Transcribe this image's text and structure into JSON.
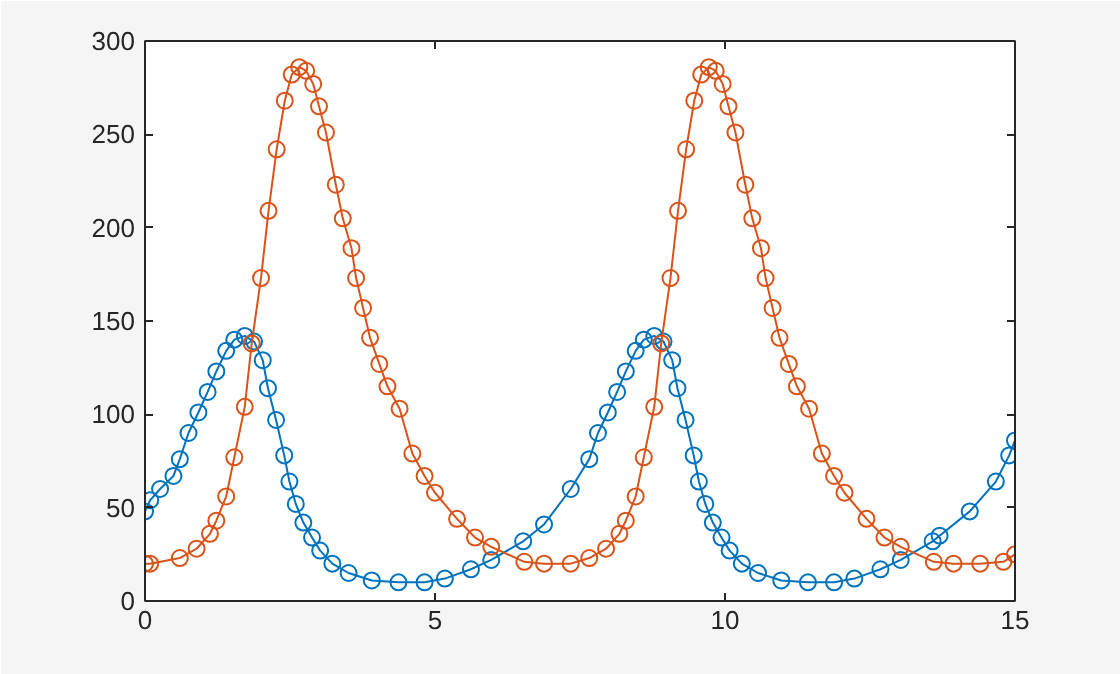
{
  "chart_data": {
    "type": "line",
    "marker": "circle",
    "line_style": "solid",
    "grid": false,
    "xlim": [
      0,
      15
    ],
    "ylim": [
      0,
      300
    ],
    "xticks": [
      0,
      5,
      10,
      15
    ],
    "yticks": [
      0,
      50,
      100,
      150,
      200,
      250,
      300
    ],
    "series": [
      {
        "color": "#0072bd",
        "x": [
          0,
          0.09,
          0.26,
          0.49,
          0.6,
          0.75,
          0.92,
          1.08,
          1.23,
          1.4,
          1.54,
          1.72,
          1.88,
          2.03,
          2.12,
          2.26,
          2.4,
          2.49,
          2.6,
          2.73,
          2.88,
          3.02,
          3.23,
          3.51,
          3.91,
          4.37,
          4.82,
          5.17,
          5.62,
          5.97,
          6.52,
          6.88,
          7.34,
          7.66,
          7.81,
          7.98,
          8.14,
          8.29,
          8.46,
          8.6,
          8.78,
          8.94,
          9.09,
          9.18,
          9.32,
          9.46,
          9.55,
          9.66,
          9.79,
          9.94,
          10.08,
          10.29,
          10.57,
          10.97,
          11.43,
          11.88,
          12.23,
          12.68,
          13.03,
          13.58,
          13.7,
          14.22,
          14.67,
          14.9,
          15
        ],
        "values": [
          48,
          54,
          60,
          67,
          76,
          90,
          101,
          112,
          123,
          134,
          140,
          142,
          139,
          129,
          114,
          97,
          78,
          64,
          52,
          42,
          34,
          27,
          20,
          15,
          11,
          10,
          10,
          12,
          17,
          22,
          32,
          41,
          60,
          76,
          90,
          101,
          112,
          123,
          134,
          140,
          142,
          139,
          129,
          114,
          97,
          78,
          64,
          52,
          42,
          34,
          27,
          20,
          15,
          11,
          10,
          10,
          12,
          17,
          22,
          32,
          35,
          48,
          64,
          78,
          86
        ]
      },
      {
        "color": "#d95319",
        "x": [
          0,
          0.09,
          0.6,
          0.89,
          1.12,
          1.23,
          1.4,
          1.54,
          1.72,
          1.84,
          2.0,
          2.13,
          2.27,
          2.41,
          2.53,
          2.66,
          2.78,
          2.9,
          3.0,
          3.12,
          3.29,
          3.41,
          3.56,
          3.64,
          3.76,
          3.88,
          4.04,
          4.18,
          4.39,
          4.61,
          4.82,
          5.0,
          5.38,
          5.69,
          5.97,
          6.54,
          6.88,
          7.34,
          7.66,
          7.95,
          8.18,
          8.29,
          8.46,
          8.6,
          8.78,
          8.9,
          9.06,
          9.19,
          9.33,
          9.47,
          9.59,
          9.72,
          9.84,
          9.96,
          10.06,
          10.18,
          10.35,
          10.47,
          10.62,
          10.7,
          10.82,
          10.94,
          11.1,
          11.24,
          11.45,
          11.67,
          11.88,
          12.06,
          12.44,
          12.75,
          13.03,
          13.6,
          13.94,
          14.4,
          14.8,
          15
        ],
        "values": [
          20,
          20,
          23,
          28,
          36,
          43,
          56,
          77,
          104,
          138,
          173,
          209,
          242,
          268,
          282,
          286,
          284,
          277,
          265,
          251,
          223,
          205,
          189,
          173,
          157,
          141,
          127,
          115,
          103,
          79,
          67,
          58,
          44,
          34,
          29,
          21,
          20,
          20,
          23,
          28,
          36,
          43,
          56,
          77,
          104,
          138,
          173,
          209,
          242,
          268,
          282,
          286,
          284,
          277,
          265,
          251,
          223,
          205,
          189,
          173,
          157,
          141,
          127,
          115,
          103,
          79,
          67,
          58,
          44,
          34,
          29,
          21,
          20,
          20,
          21,
          25
        ]
      }
    ]
  }
}
